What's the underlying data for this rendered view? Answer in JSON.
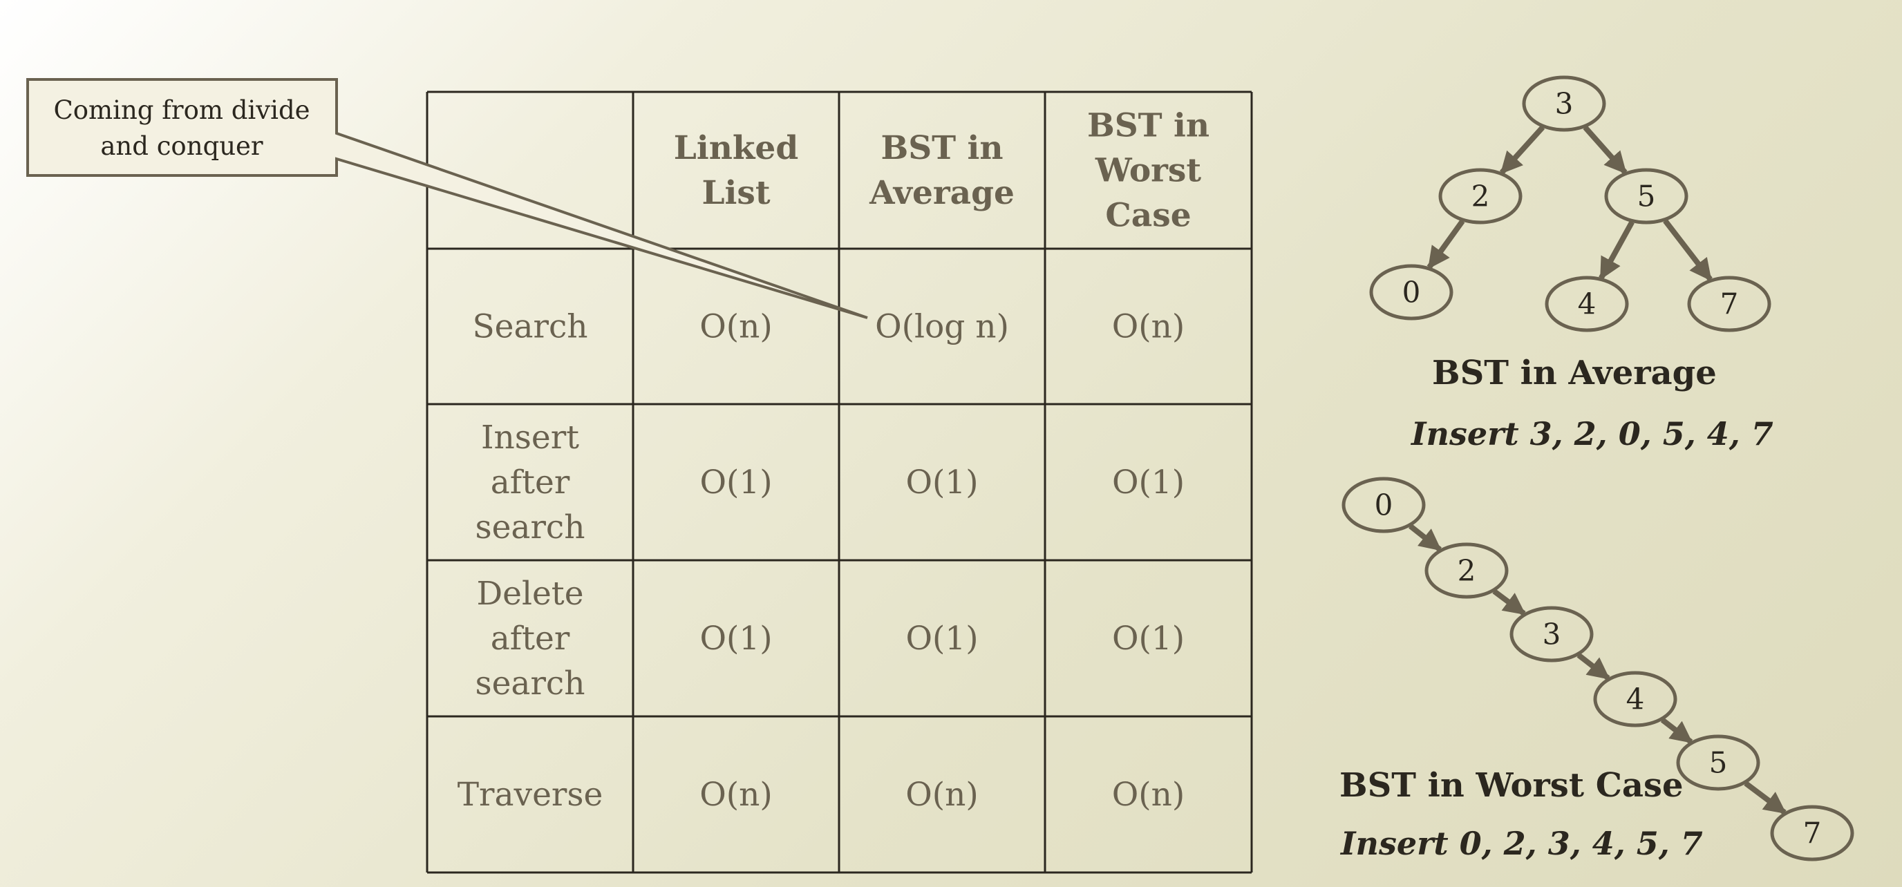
{
  "callout": {
    "lines": [
      "Coming from divide",
      "and conquer"
    ]
  },
  "table": {
    "columns": [
      "",
      "Linked\nList",
      "BST in\nAverage",
      "BST in\nWorst\nCase"
    ],
    "rows": [
      {
        "label": "Search",
        "cells": [
          "O(n)",
          "O(log n)",
          "O(n)"
        ]
      },
      {
        "label": "Insert\nafter\nsearch",
        "cells": [
          "O(1)",
          "O(1)",
          "O(1)"
        ]
      },
      {
        "label": "Delete\nafter\nsearch",
        "cells": [
          "O(1)",
          "O(1)",
          "O(1)"
        ]
      },
      {
        "label": "Traverse",
        "cells": [
          "O(n)",
          "O(n)",
          "O(n)"
        ]
      }
    ]
  },
  "bst_average": {
    "title": "BST in Average",
    "subtitle": "Insert 3, 2, 0, 5, 4, 7",
    "nodes": [
      "3",
      "2",
      "5",
      "0",
      "4",
      "7"
    ],
    "edges": [
      [
        "3",
        "2"
      ],
      [
        "2",
        "0"
      ],
      [
        "3",
        "5"
      ],
      [
        "5",
        "4"
      ],
      [
        "5",
        "7"
      ]
    ]
  },
  "bst_worst": {
    "title": "BST in Worst Case",
    "subtitle": "Insert 0, 2, 3, 4, 5, 7",
    "nodes": [
      "0",
      "2",
      "3",
      "4",
      "5",
      "7"
    ],
    "edges": [
      [
        "0",
        "2"
      ],
      [
        "2",
        "3"
      ],
      [
        "3",
        "4"
      ],
      [
        "4",
        "5"
      ],
      [
        "5",
        "7"
      ]
    ]
  },
  "colors": {
    "line": "#2b271f",
    "node_stroke": "#6a6250",
    "edge": "#6a6250",
    "cell_text": "#6a6250"
  }
}
